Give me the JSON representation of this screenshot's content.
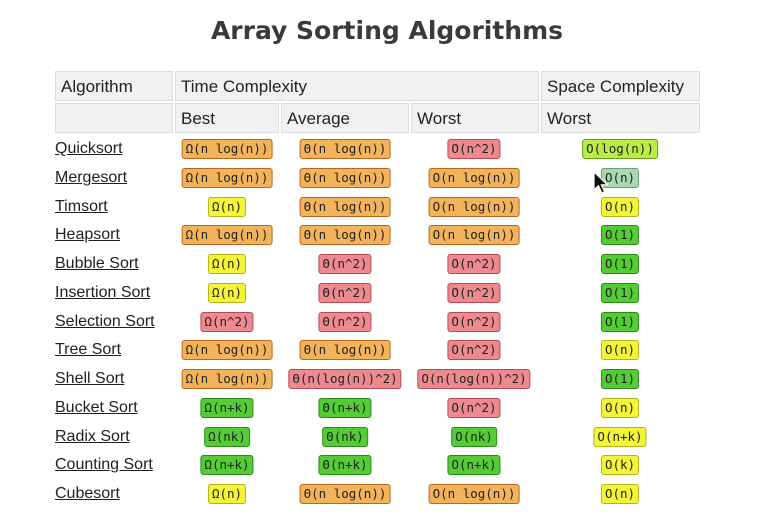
{
  "title": "Array Sorting Algorithms",
  "headers": {
    "algorithm": "Algorithm",
    "time_complexity": "Time Complexity",
    "space_complexity": "Space Complexity",
    "best": "Best",
    "average": "Average",
    "worst": "Worst",
    "space_worst": "Worst"
  },
  "colors": {
    "orange": "#f2b35a",
    "red": "#ee8a8f",
    "green": "#54cc33",
    "light_green": "#b9ec45",
    "yellow": "#f5f537"
  },
  "rows": [
    {
      "name": "Quicksort",
      "best": {
        "v": "Ω(n log(n))",
        "c": "orange"
      },
      "average": {
        "v": "Θ(n log(n))",
        "c": "orange"
      },
      "worst": {
        "v": "O(n^2)",
        "c": "red"
      },
      "space": {
        "v": "O(log(n))",
        "c": "lgreen"
      }
    },
    {
      "name": "Mergesort",
      "best": {
        "v": "Ω(n log(n))",
        "c": "orange"
      },
      "average": {
        "v": "Θ(n log(n))",
        "c": "orange"
      },
      "worst": {
        "v": "O(n log(n))",
        "c": "orange"
      },
      "space": {
        "v": "O(n)",
        "c": "sel"
      }
    },
    {
      "name": "Timsort",
      "best": {
        "v": "Ω(n)",
        "c": "yellow"
      },
      "average": {
        "v": "Θ(n log(n))",
        "c": "orange"
      },
      "worst": {
        "v": "O(n log(n))",
        "c": "orange"
      },
      "space": {
        "v": "O(n)",
        "c": "yellow"
      }
    },
    {
      "name": "Heapsort",
      "best": {
        "v": "Ω(n log(n))",
        "c": "orange"
      },
      "average": {
        "v": "Θ(n log(n))",
        "c": "orange"
      },
      "worst": {
        "v": "O(n log(n))",
        "c": "orange"
      },
      "space": {
        "v": "O(1)",
        "c": "green"
      }
    },
    {
      "name": "Bubble Sort",
      "best": {
        "v": "Ω(n)",
        "c": "yellow"
      },
      "average": {
        "v": "Θ(n^2)",
        "c": "red"
      },
      "worst": {
        "v": "O(n^2)",
        "c": "red"
      },
      "space": {
        "v": "O(1)",
        "c": "green"
      }
    },
    {
      "name": "Insertion Sort",
      "best": {
        "v": "Ω(n)",
        "c": "yellow"
      },
      "average": {
        "v": "Θ(n^2)",
        "c": "red"
      },
      "worst": {
        "v": "O(n^2)",
        "c": "red"
      },
      "space": {
        "v": "O(1)",
        "c": "green"
      }
    },
    {
      "name": "Selection Sort",
      "best": {
        "v": "Ω(n^2)",
        "c": "red"
      },
      "average": {
        "v": "Θ(n^2)",
        "c": "red"
      },
      "worst": {
        "v": "O(n^2)",
        "c": "red"
      },
      "space": {
        "v": "O(1)",
        "c": "green"
      }
    },
    {
      "name": "Tree Sort",
      "best": {
        "v": "Ω(n log(n))",
        "c": "orange"
      },
      "average": {
        "v": "Θ(n log(n))",
        "c": "orange"
      },
      "worst": {
        "v": "O(n^2)",
        "c": "red"
      },
      "space": {
        "v": "O(n)",
        "c": "yellow"
      }
    },
    {
      "name": "Shell Sort",
      "best": {
        "v": "Ω(n log(n))",
        "c": "orange"
      },
      "average": {
        "v": "Θ(n(log(n))^2)",
        "c": "red"
      },
      "worst": {
        "v": "O(n(log(n))^2)",
        "c": "red"
      },
      "space": {
        "v": "O(1)",
        "c": "green"
      }
    },
    {
      "name": "Bucket Sort",
      "best": {
        "v": "Ω(n+k)",
        "c": "green"
      },
      "average": {
        "v": "Θ(n+k)",
        "c": "green"
      },
      "worst": {
        "v": "O(n^2)",
        "c": "red"
      },
      "space": {
        "v": "O(n)",
        "c": "yellow"
      }
    },
    {
      "name": "Radix Sort",
      "best": {
        "v": "Ω(nk)",
        "c": "green"
      },
      "average": {
        "v": "Θ(nk)",
        "c": "green"
      },
      "worst": {
        "v": "O(nk)",
        "c": "green"
      },
      "space": {
        "v": "O(n+k)",
        "c": "yellow"
      }
    },
    {
      "name": "Counting Sort",
      "best": {
        "v": "Ω(n+k)",
        "c": "green"
      },
      "average": {
        "v": "Θ(n+k)",
        "c": "green"
      },
      "worst": {
        "v": "O(n+k)",
        "c": "green"
      },
      "space": {
        "v": "O(k)",
        "c": "yellow"
      }
    },
    {
      "name": "Cubesort",
      "best": {
        "v": "Ω(n)",
        "c": "yellow"
      },
      "average": {
        "v": "Θ(n log(n))",
        "c": "orange"
      },
      "worst": {
        "v": "O(n log(n))",
        "c": "orange"
      },
      "space": {
        "v": "O(n)",
        "c": "yellow"
      }
    }
  ]
}
